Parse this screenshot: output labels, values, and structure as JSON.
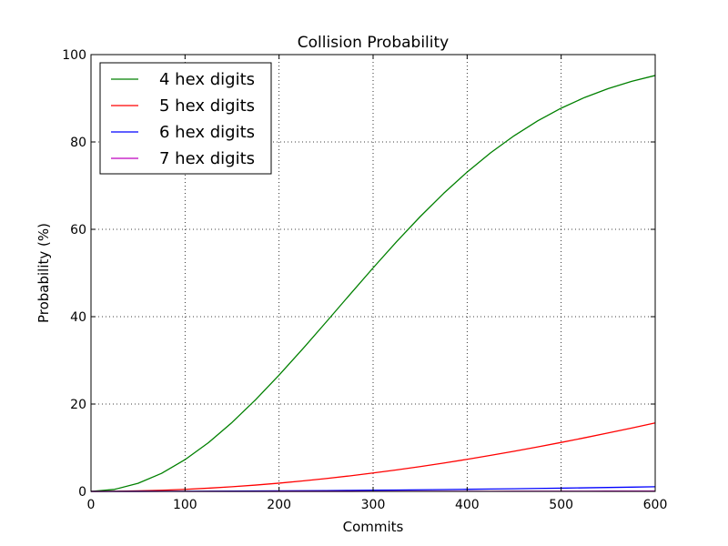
{
  "chart_data": {
    "type": "line",
    "title": "Collision Probability",
    "xlabel": "Commits",
    "ylabel": "Probability (%)",
    "xlim": [
      0,
      600
    ],
    "ylim": [
      0,
      100
    ],
    "xticks": [
      0,
      100,
      200,
      300,
      400,
      500,
      600
    ],
    "yticks": [
      0,
      20,
      40,
      60,
      80,
      100
    ],
    "grid": true,
    "legend_position": "top-left",
    "x": [
      0,
      25,
      50,
      75,
      100,
      125,
      150,
      175,
      200,
      225,
      250,
      275,
      300,
      325,
      350,
      375,
      400,
      425,
      450,
      475,
      500,
      525,
      550,
      575,
      600
    ],
    "series": [
      {
        "name": "4 hex digits",
        "color": "#008000",
        "values": [
          0,
          0.46,
          1.85,
          4.13,
          7.27,
          11.18,
          15.79,
          20.98,
          26.62,
          32.58,
          38.75,
          44.99,
          51.17,
          57.18,
          62.89,
          68.22,
          73.11,
          77.52,
          81.43,
          84.83,
          87.74,
          90.19,
          92.22,
          93.89,
          95.22
        ]
      },
      {
        "name": "5 hex digits",
        "color": "#ff0000",
        "values": [
          0,
          0.03,
          0.12,
          0.26,
          0.47,
          0.74,
          1.06,
          1.45,
          1.89,
          2.39,
          2.94,
          3.55,
          4.21,
          4.92,
          5.68,
          6.49,
          7.35,
          8.25,
          9.2,
          10.19,
          11.21,
          12.28,
          13.38,
          14.51,
          15.68
        ]
      },
      {
        "name": "6 hex digits",
        "color": "#0000ff",
        "values": [
          0,
          0,
          0.01,
          0.02,
          0.03,
          0.05,
          0.07,
          0.09,
          0.12,
          0.15,
          0.19,
          0.23,
          0.27,
          0.31,
          0.36,
          0.42,
          0.48,
          0.54,
          0.6,
          0.67,
          0.74,
          0.82,
          0.9,
          0.98,
          1.07
        ]
      },
      {
        "name": "7 hex digits",
        "color": "#bf00bf",
        "values": [
          0,
          0,
          0,
          0,
          0,
          0,
          0,
          0,
          0.01,
          0.01,
          0.01,
          0.01,
          0.02,
          0.02,
          0.02,
          0.03,
          0.03,
          0.03,
          0.04,
          0.04,
          0.05,
          0.05,
          0.06,
          0.06,
          0.07
        ]
      }
    ]
  }
}
